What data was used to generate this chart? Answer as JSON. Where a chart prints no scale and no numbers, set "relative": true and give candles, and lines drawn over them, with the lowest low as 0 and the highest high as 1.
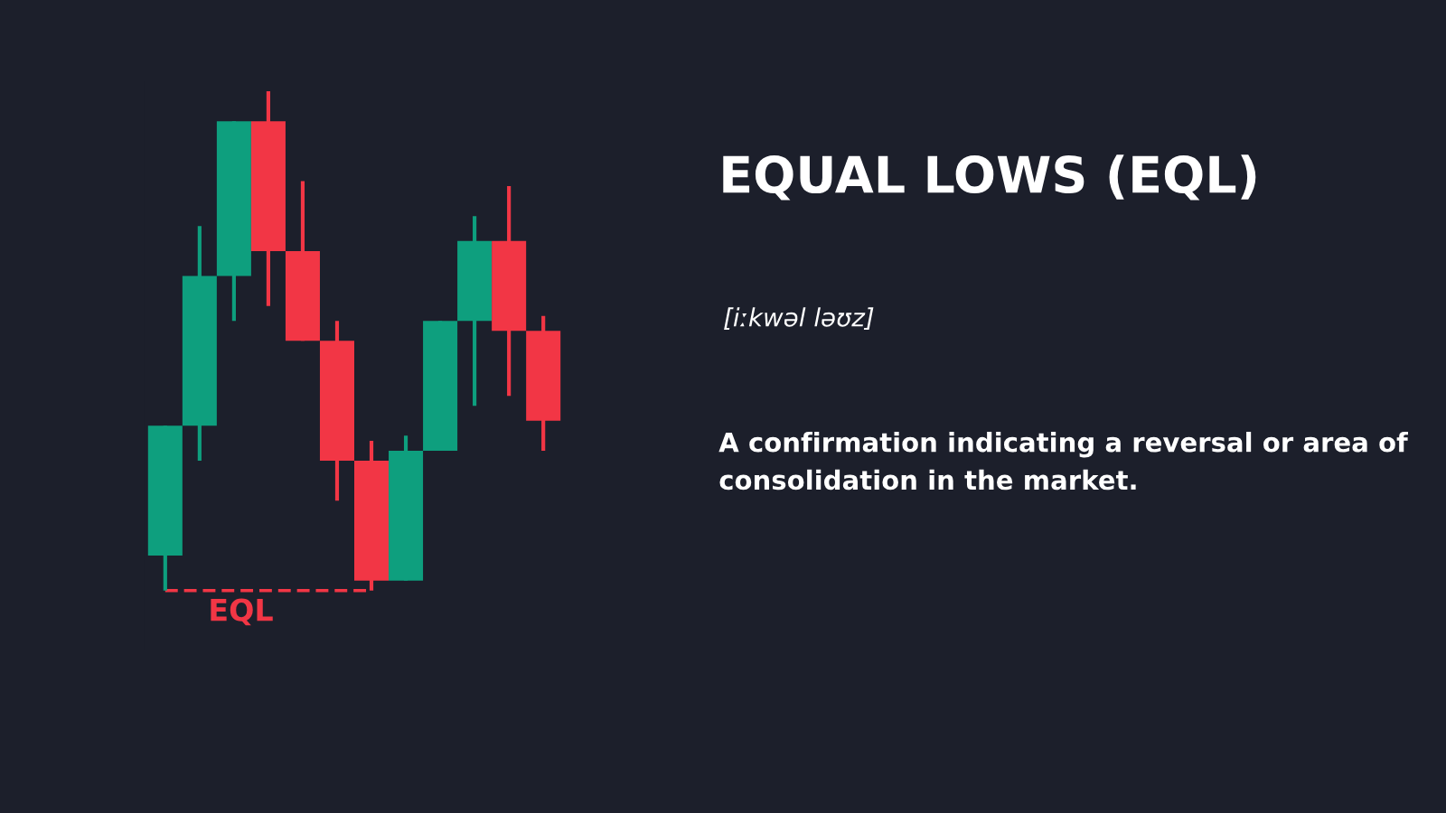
{
  "chart_data": {
    "type": "candlestick",
    "title": "EQUAL LOWS (EQL)",
    "subtitle": "[iːkwəl ləʊz]",
    "annotations": [
      "A confirmation indicating a reversal or area of consolidation in the market."
    ],
    "relative": true,
    "categories": [
      null,
      null,
      null,
      null,
      null,
      null,
      null,
      null,
      null,
      null,
      null,
      null
    ],
    "ohlc": [
      [
        0.07,
        0.33,
        0,
        0.33
      ],
      [
        0.33,
        0.73,
        0.26,
        0.63
      ],
      [
        0.63,
        0.94,
        0.54,
        0.94
      ],
      [
        0.94,
        1,
        0.57,
        0.68
      ],
      [
        0.68,
        0.82,
        0.5,
        0.5
      ],
      [
        0.5,
        0.54,
        0.18,
        0.26
      ],
      [
        0.26,
        0.3,
        0,
        0.02
      ],
      [
        0.02,
        0.31,
        0.02,
        0.28
      ],
      [
        0.28,
        0.54,
        0.28,
        0.54
      ],
      [
        0.54,
        0.75,
        0.37,
        0.7
      ],
      [
        0.7,
        0.81,
        0.39,
        0.52
      ],
      [
        0.52,
        0.55,
        0.28,
        0.34
      ]
    ],
    "colors": [
      "#0e9f7e",
      "#0e9f7e",
      "#0e9f7e",
      "#f23645",
      "#f23645",
      "#f23645",
      "#f23645",
      "#0e9f7e",
      "#0e9f7e",
      "#0e9f7e",
      "#f23645",
      "#f23645"
    ],
    "ref_lines": [
      {
        "axis": "y",
        "value": 0,
        "label": "EQL",
        "color": "#f23645",
        "line_style": "dashed"
      }
    ]
  }
}
